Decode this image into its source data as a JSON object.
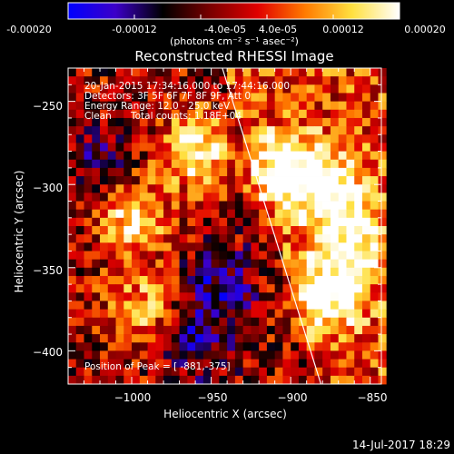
{
  "colorbar": {
    "ticks": [
      "-0.00020",
      "-0.00012",
      "-4.0e-05",
      "4.0e-05",
      "0.00012",
      "0.00020"
    ],
    "tick_values": [
      -0.0002,
      -0.00012,
      -4e-05,
      4e-05,
      0.00012,
      0.0002
    ],
    "range": [
      -0.0002,
      0.0002
    ],
    "unit_label": "(photons cm⁻² s⁻¹ asec⁻²)",
    "colors": [
      "#0000ff",
      "#3c00c8",
      "#000000",
      "#7a0000",
      "#e00000",
      "#ff7a00",
      "#ffe040",
      "#ffffff"
    ]
  },
  "info": {
    "line1": "20-Jan-2015 17:34:16.000 to 17:44:16.000",
    "line2": "Detectors: 3F 5F 6F 7F 8F 9F, Att 0",
    "line3": "Energy Range: 12.0 - 25.0 keV",
    "line4_left": "Clean",
    "line4_right": "Total counts: 1.18E+04",
    "peak": "Position of Peak = [ -881,-375]"
  },
  "footer": {
    "date": "14-Jul-2017 18:29"
  },
  "chart_data": {
    "type": "heatmap",
    "title": "Reconstructed RHESSI Image",
    "xlabel": "Heliocentric X (arcsec)",
    "ylabel": "Heliocentric Y (arcsec)",
    "xlim": [
      -1040,
      -843
    ],
    "ylim": [
      -420,
      -230
    ],
    "xticks": [
      -1000,
      -950,
      -900,
      -850
    ],
    "yticks": [
      -250,
      -300,
      -350,
      -400
    ],
    "xtick_labels": [
      "−1000",
      "−950",
      "−900",
      "−850"
    ],
    "ytick_labels": [
      "−250",
      "−300",
      "−350",
      "−400"
    ],
    "limb_line": {
      "x": [
        -943,
        -881
      ],
      "y": [
        -230,
        -420
      ]
    },
    "peak_position": [
      -881,
      -375
    ],
    "bright_regions": [
      {
        "x": -960,
        "y": -280,
        "level": 1.0
      },
      {
        "x": -1000,
        "y": -320,
        "level": 0.9
      },
      {
        "x": -905,
        "y": -290,
        "level": 0.85
      },
      {
        "x": -875,
        "y": -365,
        "level": 1.0
      },
      {
        "x": -880,
        "y": -300,
        "level": 0.85
      },
      {
        "x": -995,
        "y": -375,
        "level": 0.7
      },
      {
        "x": -860,
        "y": -330,
        "level": 0.8
      }
    ],
    "dim_regions": [
      {
        "x": -945,
        "y": -360,
        "level": -0.55
      },
      {
        "x": -1020,
        "y": -290,
        "level": -0.4
      },
      {
        "x": -960,
        "y": -395,
        "level": -0.5
      }
    ]
  }
}
